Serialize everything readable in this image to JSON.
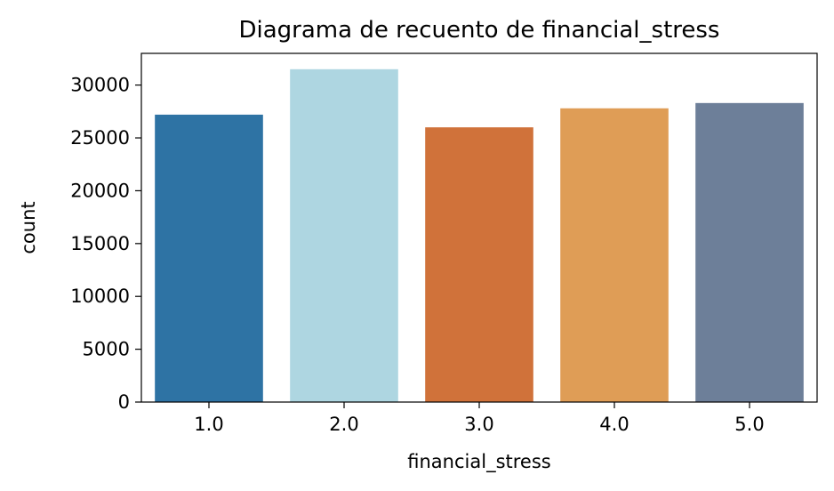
{
  "chart_data": {
    "type": "bar",
    "title": "Diagrama de recuento de financial_stress",
    "xlabel": "financial_stress",
    "ylabel": "count",
    "categories": [
      "1.0",
      "2.0",
      "3.0",
      "4.0",
      "5.0"
    ],
    "values": [
      27200,
      31500,
      26000,
      27800,
      28300
    ],
    "colors": [
      "#2e73a4",
      "#aed6e1",
      "#d0723a",
      "#df9d56",
      "#6d7f99"
    ],
    "ylim": [
      0,
      33000
    ],
    "yticks": [
      0,
      5000,
      10000,
      15000,
      20000,
      25000,
      30000
    ],
    "ytick_labels": [
      "0",
      "5000",
      "10000",
      "15000",
      "20000",
      "25000",
      "30000"
    ],
    "grid": false,
    "legend": "none"
  }
}
